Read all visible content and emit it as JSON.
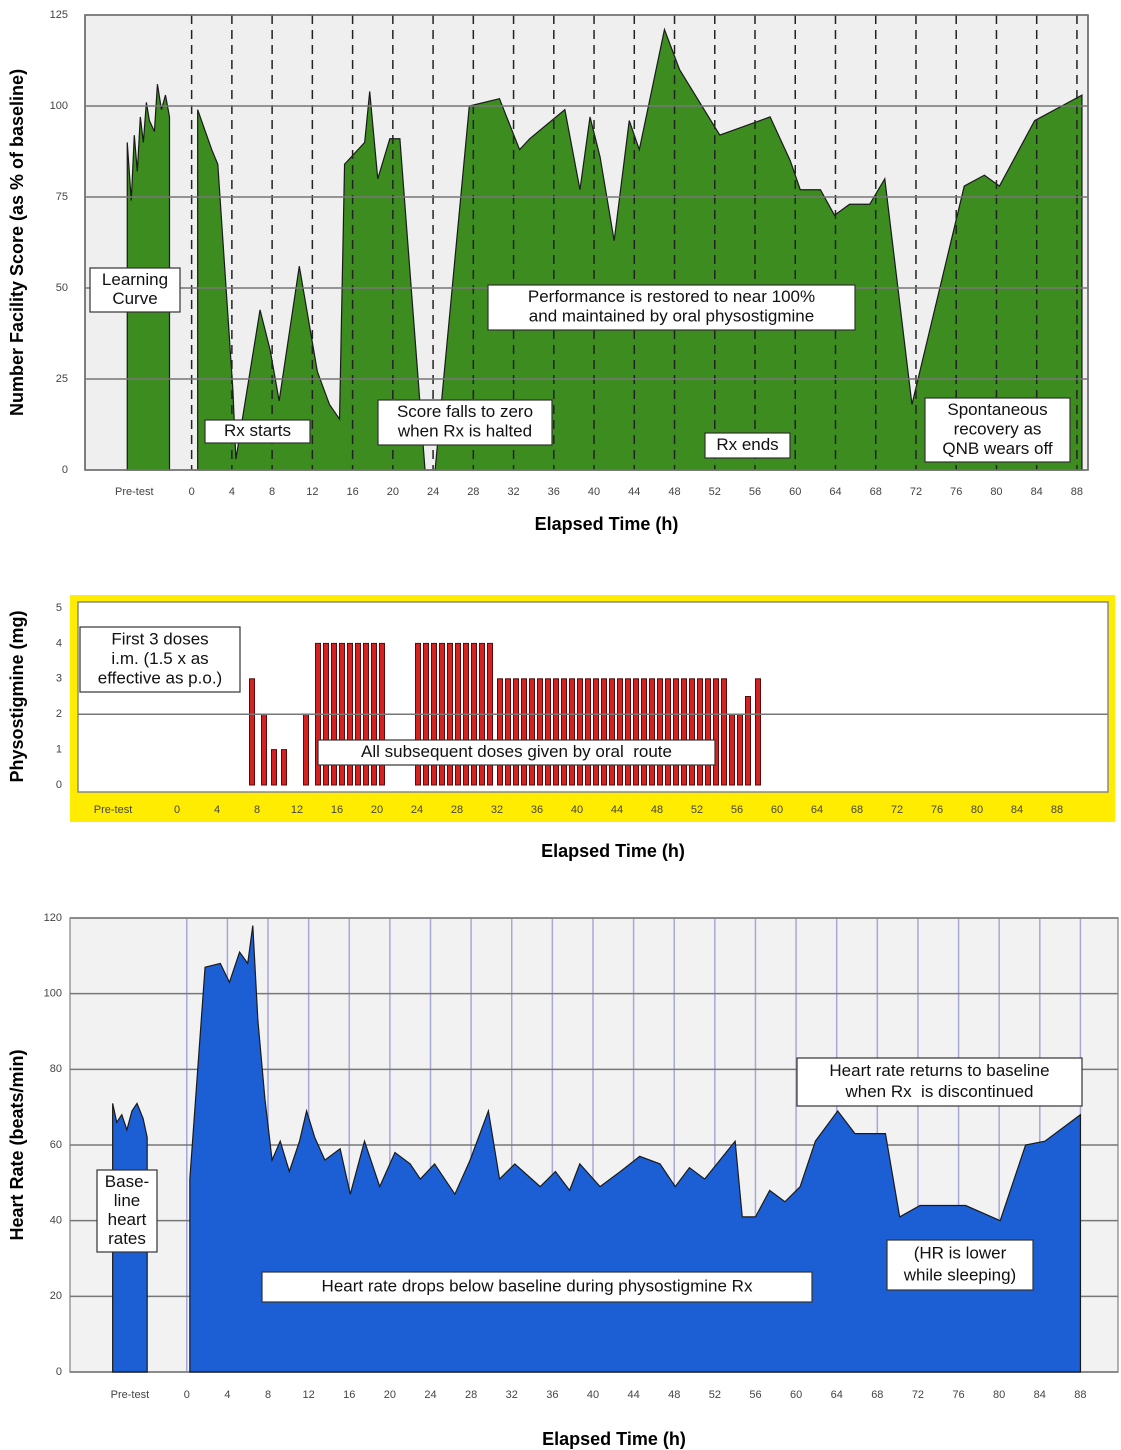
{
  "chart_data": [
    {
      "type": "area",
      "y_label": "Number Facility Score (as % of baseline)",
      "x_label": "Elapsed Time (h)",
      "color": "#3d8c1f",
      "grid": true,
      "xlim": [
        -10.6,
        89.1
      ],
      "ylim": [
        0,
        125
      ],
      "xticks": [
        {
          "value": -5.7,
          "label": "Pre-test"
        },
        0,
        4,
        8,
        12,
        16,
        20,
        24,
        28,
        32,
        36,
        40,
        44,
        48,
        52,
        56,
        60,
        64,
        68,
        72,
        76,
        80,
        84,
        88
      ],
      "yticks": [
        0,
        25,
        50,
        75,
        100,
        125
      ],
      "x": [
        -6.4,
        -6.0,
        -5.7,
        -5.4,
        -5.1,
        -4.8,
        -4.5,
        -4.2,
        -3.7,
        -3.4,
        -3.0,
        -2.6,
        -2.2,
        -1,
        0.6,
        2,
        2.6,
        4.1,
        4.4,
        6.8,
        7.8,
        8.7,
        10.7,
        12.5,
        13.7,
        14.7,
        15.2,
        17.2,
        17.7,
        18.5,
        19.7,
        20.7,
        23.2,
        24.2,
        27.6,
        30.6,
        32.6,
        33.6,
        37.1,
        38.6,
        39.6,
        40.6,
        42,
        43.5,
        44.5,
        47,
        48.5,
        52.5,
        57.5,
        59.5,
        60.5,
        62.5,
        63.9,
        65.4,
        67.4,
        68.9,
        71.6,
        76.8,
        78.8,
        80.3,
        83.8,
        88.5
      ],
      "values": [
        90,
        74,
        92,
        82,
        97,
        90,
        101,
        96,
        93,
        106,
        99,
        103,
        97,
        null,
        99,
        88,
        84,
        22,
        3,
        44,
        33,
        19,
        56,
        27,
        18,
        14,
        84,
        90,
        104,
        80,
        91,
        91,
        0,
        0,
        100,
        102,
        88,
        91,
        99,
        77,
        97,
        86,
        63,
        96,
        88,
        121,
        110,
        92,
        97,
        85,
        77,
        77,
        70,
        73,
        73,
        80,
        18,
        78,
        81,
        78,
        96,
        103
      ],
      "annotations": [
        {
          "text": [
            "Learning",
            "Curve"
          ]
        },
        {
          "text": [
            "Rx starts"
          ]
        },
        {
          "text": [
            "Score falls to zero",
            "when Rx is halted"
          ]
        },
        {
          "text": [
            "Performance is restored to near 100%",
            "and maintained by oral physostigmine"
          ]
        },
        {
          "text": [
            "Rx ends"
          ]
        },
        {
          "text": [
            "Spontaneous",
            "recovery as",
            "QNB wears off"
          ]
        }
      ]
    },
    {
      "type": "bar",
      "y_label": "Physostigmine (mg)",
      "x_label": "Elapsed Time (h)",
      "color": "#d42222",
      "grid": false,
      "reference_line": 2,
      "xlim": [
        -9.9,
        93.1
      ],
      "ylim": [
        0,
        5
      ],
      "xticks": [
        {
          "value": -6.4,
          "label": "Pre-test"
        },
        0,
        4,
        8,
        12,
        16,
        20,
        24,
        28,
        32,
        36,
        40,
        44,
        48,
        52,
        56,
        60,
        64,
        68,
        72,
        76,
        80,
        84,
        88
      ],
      "yticks": [
        0,
        1,
        2,
        3,
        4,
        5
      ],
      "x": [
        7.5,
        8.7,
        9.7,
        10.7,
        12.9,
        14.1,
        14.9,
        15.7,
        16.5,
        17.3,
        18.1,
        18.9,
        19.7,
        20.5,
        24.1,
        24.9,
        25.7,
        26.5,
        27.3,
        28.1,
        28.9,
        29.7,
        30.5,
        31.3,
        32.3,
        33.1,
        33.9,
        34.7,
        35.5,
        36.3,
        37.1,
        37.9,
        38.7,
        39.5,
        40.3,
        41.1,
        41.9,
        42.7,
        43.5,
        44.3,
        45.1,
        45.9,
        46.7,
        47.5,
        48.3,
        49.1,
        49.9,
        50.7,
        51.5,
        52.3,
        53.1,
        53.9,
        54.7,
        55.5,
        56.3,
        57.1,
        58.1
      ],
      "values": [
        3,
        2,
        1,
        1,
        2,
        4,
        4,
        4,
        4,
        4,
        4,
        4,
        4,
        4,
        4,
        4,
        4,
        4,
        4,
        4,
        4,
        4,
        4,
        4,
        3,
        3,
        3,
        3,
        3,
        3,
        3,
        3,
        3,
        3,
        3,
        3,
        3,
        3,
        3,
        3,
        3,
        3,
        3,
        3,
        3,
        3,
        3,
        3,
        3,
        3,
        3,
        3,
        3,
        2,
        2,
        2.5,
        3
      ],
      "annotations": [
        {
          "text": [
            "First 3 doses",
            "i.m. (1.5 x as",
            "effective as p.o.)"
          ]
        },
        {
          "text": [
            "All subsequent doses given by oral  route"
          ]
        }
      ]
    },
    {
      "type": "area",
      "y_label": "Heart Rate (beats/min)",
      "x_label": "Elapsed Time (h)",
      "color": "#1c5fd4",
      "grid": true,
      "xlim": [
        -11.5,
        91.7
      ],
      "ylim": [
        0,
        120
      ],
      "xticks": [
        {
          "value": -5.6,
          "label": "Pre-test"
        },
        0,
        4,
        8,
        12,
        16,
        20,
        24,
        28,
        32,
        36,
        40,
        44,
        48,
        52,
        56,
        60,
        64,
        68,
        72,
        76,
        80,
        84,
        88
      ],
      "yticks": [
        0,
        20,
        40,
        60,
        80,
        100,
        120
      ],
      "x": [
        -7.3,
        -6.9,
        -6.4,
        -5.9,
        -5.4,
        -4.9,
        -4.3,
        -3.9,
        -2,
        0.3,
        1.8,
        3.3,
        4.2,
        5.2,
        6.0,
        6.5,
        7.0,
        7.7,
        8.4,
        9.2,
        10.1,
        11.1,
        11.8,
        12.6,
        13.6,
        15.1,
        16.1,
        17.5,
        19.0,
        20.5,
        22.0,
        23.0,
        24.4,
        26.4,
        27.9,
        29.7,
        30.8,
        32.3,
        34.8,
        36.3,
        37.7,
        38.7,
        40.7,
        42.7,
        44.6,
        46.6,
        48.1,
        49.5,
        51.0,
        52.5,
        54.0,
        54.7,
        56.0,
        57.4,
        58.9,
        60.4,
        61.9,
        64.1,
        65.8,
        68.8,
        70.2,
        72.2,
        76.7,
        80.1,
        82.6,
        84.5,
        88.0
      ],
      "values": [
        71,
        66,
        68,
        64,
        69,
        71,
        67,
        62,
        null,
        51,
        107,
        108,
        103,
        111,
        108,
        118,
        93,
        72,
        56,
        61,
        53,
        61,
        69,
        62,
        56,
        59,
        47,
        61,
        49,
        58,
        55,
        51,
        55,
        47,
        56,
        69,
        51,
        55,
        49,
        53,
        48,
        55,
        49,
        53,
        57,
        55,
        49,
        54,
        51,
        56,
        61,
        41,
        41,
        48,
        45,
        49,
        61,
        69,
        63,
        63,
        41,
        44,
        44,
        40,
        60,
        61,
        68
      ],
      "annotations": [
        {
          "text": [
            "Base-",
            "line",
            "heart",
            "rates"
          ]
        },
        {
          "text": [
            "Heart rate drops below baseline during physostigmine Rx"
          ]
        },
        {
          "text": [
            "Heart rate returns to baseline",
            "when Rx  is discontinued"
          ]
        },
        {
          "text": [
            "(HR is lower",
            "while sleeping)"
          ]
        }
      ]
    }
  ]
}
